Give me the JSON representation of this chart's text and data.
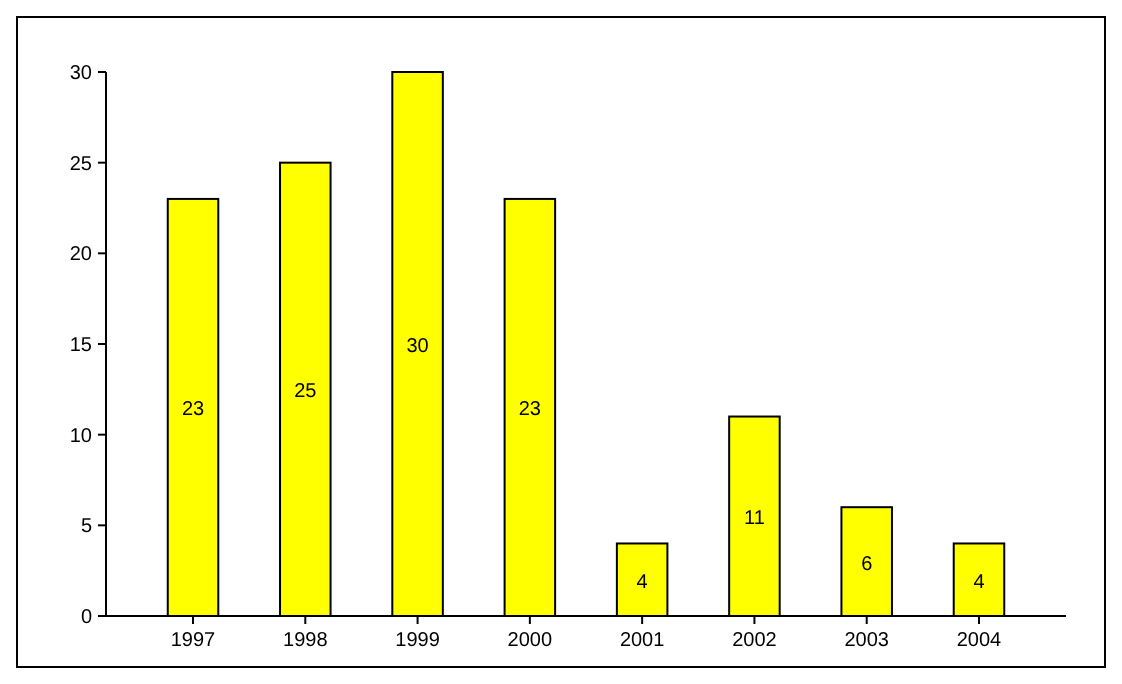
{
  "chart_data": {
    "type": "bar",
    "categories": [
      "1997",
      "1998",
      "1999",
      "2000",
      "2001",
      "2002",
      "2003",
      "2004"
    ],
    "values": [
      23,
      25,
      30,
      23,
      4,
      11,
      6,
      4
    ],
    "color": "#ffff00",
    "ylim": [
      0,
      30
    ],
    "yticks": [
      0,
      5,
      10,
      15,
      20,
      25,
      30
    ],
    "data_labels": true,
    "grid": false
  }
}
